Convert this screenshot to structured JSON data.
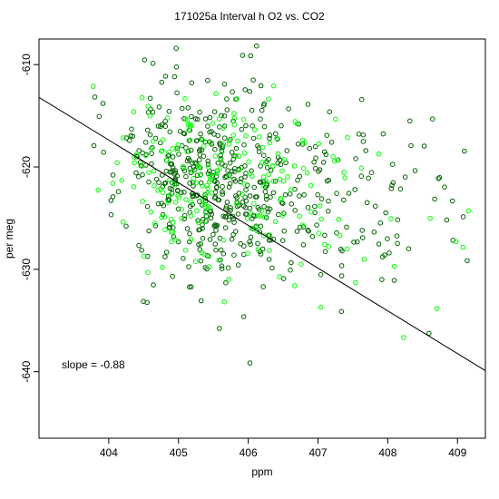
{
  "chart_data": {
    "type": "scatter",
    "title": "171025a   Interval h O2 vs. CO2",
    "xlabel": "ppm",
    "ylabel": "per meg",
    "xlim": [
      403.0,
      409.4
    ],
    "ylim": [
      -646.5,
      -607.5
    ],
    "x_ticks": [
      404,
      405,
      406,
      407,
      408,
      409
    ],
    "y_ticks": [
      -610,
      -620,
      -630,
      -640
    ],
    "x_tick_labels": [
      "404",
      "405",
      "406",
      "407",
      "408",
      "409"
    ],
    "y_tick_labels": [
      "-610",
      "-620",
      "-630",
      "-640"
    ],
    "grid": false,
    "legend": "none",
    "colors": {
      "series_dark": "#006400",
      "series_light": "#00ff00",
      "fit_line": "#000000"
    },
    "fit_line": {
      "x": [
        403.0,
        409.4
      ],
      "y": [
        -613.2,
        -639.9
      ]
    },
    "annotation": "slope =  -0.88",
    "point_summary": {
      "x_center": 405.7,
      "y_center": -621.9,
      "slope": -0.88,
      "n_dark": 560,
      "n_light": 230
    }
  }
}
